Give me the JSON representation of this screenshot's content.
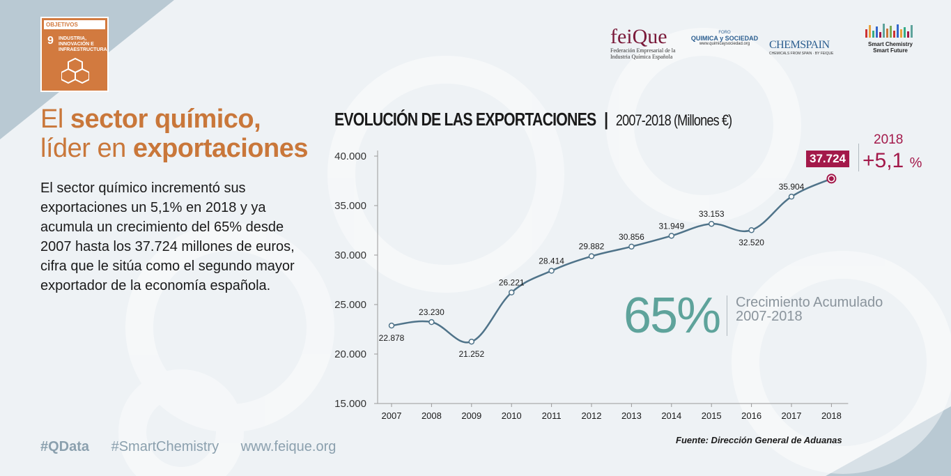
{
  "ods": {
    "header": "OBJETIVOS",
    "number": "9",
    "text": "INDUSTRIA, INNOVACIÓN E INFRAESTRUCTURA"
  },
  "logos": {
    "feique_name": "feiQue",
    "feique_sub1": "Federación Empresarial de la",
    "feique_sub2": "Industria Química Española",
    "foro_top": "FORO",
    "foro_name": "QUIMICA y SOCIEDAD",
    "foro_url": "www.quimicaysociedad.org",
    "chemspain_name": "CHEMSPAIN",
    "chemspain_sub": "CHEMICALS FROM SPAIN · BY FEIQUE",
    "smart_line1": "Smart Chemistry",
    "smart_line2": "Smart Future"
  },
  "headline": {
    "line1_plain": "El ",
    "line1_bold": "sector químico,",
    "line2_plain": "líder en ",
    "line2_bold": "exportaciones"
  },
  "body": "El sector químico incrementó sus exportaciones un 5,1% en 2018 y ya acumula un crecimiento del 65% desde 2007 hasta los 37.724 millones de euros, cifra que le sitúa como el segundo mayor exportador de la economía española.",
  "hashtags": [
    "#QData",
    "#SmartChemistry",
    "www.feique.org"
  ],
  "chart_title": {
    "main": "EVOLUCIÓN DE LAS EXPORTACIONES",
    "sep": "|",
    "sub": "2007-2018 (Millones €)"
  },
  "highlight": {
    "value_label": "37.724",
    "year": "2018",
    "growth": "+5,1",
    "growth_unit": "%"
  },
  "accumulated": {
    "value": "65%",
    "label1": "Crecimiento Acumulado",
    "label2": "2007-2018"
  },
  "source": "Fuente: Dirección General de Aduanas",
  "colors": {
    "line": "#4f7389",
    "accent": "#a3194a",
    "teal": "#5ea39b",
    "orange": "#c9773a"
  },
  "chart_data": {
    "type": "line",
    "title": "EVOLUCIÓN DE LAS EXPORTACIONES | 2007-2018 (Millones €)",
    "categories": [
      "2007",
      "2008",
      "2009",
      "2010",
      "2011",
      "2012",
      "2013",
      "2014",
      "2015",
      "2016",
      "2017",
      "2018"
    ],
    "values": [
      22878,
      23230,
      21252,
      26221,
      28414,
      29882,
      30856,
      31949,
      33153,
      32520,
      35904,
      37724
    ],
    "value_labels": [
      "22.878",
      "23.230",
      "21.252",
      "26.221",
      "28.414",
      "29.882",
      "30.856",
      "31.949",
      "33.153",
      "32.520",
      "35.904",
      "37.724"
    ],
    "ylim": [
      15000,
      40000
    ],
    "yticks": [
      15000,
      20000,
      25000,
      30000,
      35000,
      40000
    ],
    "ytick_labels": [
      "15.000",
      "20.000",
      "25.000",
      "30.000",
      "35.000",
      "40.000"
    ],
    "grid": false
  }
}
